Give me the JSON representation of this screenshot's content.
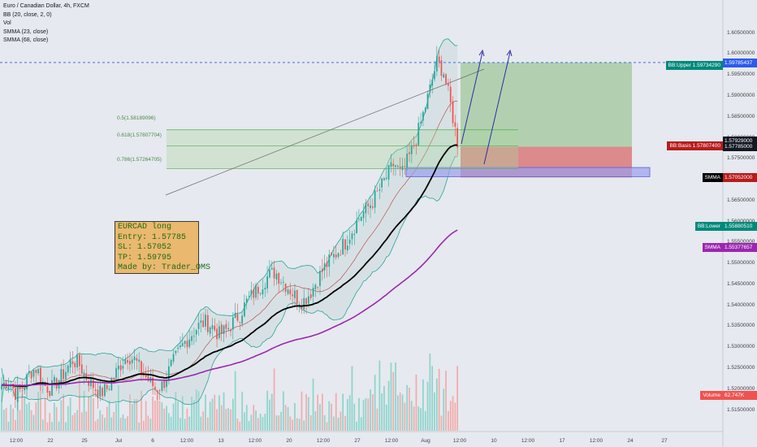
{
  "legend": {
    "title": "Euro / Canadian Dollar, 4h, FXCM",
    "bb": "BB (20, close, 2, 0)",
    "vol": "Vol",
    "smma1": "SMMA (23, close)",
    "smma2": "SMMA (68, close)"
  },
  "note": {
    "line1": "EURCAD long",
    "line2": "Entry: 1.57785",
    "line3": "SL: 1.57052",
    "line4": "TP: 1.59795",
    "line5": "Made by: Trader_OMS"
  },
  "fib_labels": [
    "0.5(1.58189096)",
    "0.618(1.57807704)",
    "0.786(1.57264705)"
  ],
  "price_labels": [
    {
      "text": "1.59795000",
      "color": "#2e7d32"
    },
    {
      "text": "1.59785437",
      "color": "#2c5bea"
    },
    {
      "text": "1.57929000",
      "color": "#131722"
    },
    {
      "text": "1.57785000",
      "color": "#131722"
    },
    {
      "text": "1.57058801",
      "color": "#000000"
    },
    {
      "text": "1.57052000",
      "color": "#b71c1c"
    },
    {
      "text": "1.55880510",
      "color": "#00897b"
    },
    {
      "text": "1.55377657",
      "color": "#9c27b0"
    },
    {
      "text": "62.747K",
      "color": "#ef5350"
    }
  ],
  "tag_labels": [
    {
      "text": "BB:Upper",
      "value": "1.59734290",
      "color": "#00897b"
    },
    {
      "text": "BB:Basis",
      "value": "1.57807400",
      "color": "#b71c1c"
    },
    {
      "text": "SMMA",
      "value": "",
      "color": "#000000"
    },
    {
      "text": "BB:Lower",
      "value": "",
      "color": "#00897b"
    },
    {
      "text": "SMMA",
      "value": "",
      "color": "#9c27b0"
    },
    {
      "text": "Volume",
      "value": "",
      "color": "#ef5350"
    }
  ],
  "y_ticks": [
    "1.60500000",
    "1.60000000",
    "1.59500000",
    "1.59000000",
    "1.58500000",
    "1.58000000",
    "1.57500000",
    "1.56500000",
    "1.56000000",
    "1.55500000",
    "1.55000000",
    "1.54500000",
    "1.54000000",
    "1.53500000",
    "1.53000000",
    "1.52500000",
    "1.52000000",
    "1.51500000"
  ],
  "x_ticks": [
    "12:00",
    "22",
    "25",
    "Jul",
    "6",
    "12:00",
    "13",
    "12:00",
    "20",
    "12:00",
    "27",
    "12:00",
    "Aug",
    "12:00",
    "10",
    "12:00",
    "17",
    "12:00",
    "24",
    "27"
  ],
  "chart_data": {
    "type": "candlestick",
    "symbol": "EURCAD",
    "timeframe": "4h",
    "ylim": [
      1.512,
      1.609
    ],
    "trade": {
      "entry": 1.57785,
      "stop_loss": 1.57052,
      "take_profit": 1.59795
    },
    "fib_levels": [
      {
        "ratio": 0.5,
        "price": 1.58189096
      },
      {
        "ratio": 0.618,
        "price": 1.57807704
      },
      {
        "ratio": 0.786,
        "price": 1.57264705
      }
    ],
    "last_values": {
      "bb_upper": 1.5973429,
      "bb_basis": 1.578074,
      "bb_lower": 1.5588051,
      "smma23": 1.57058801,
      "smma68": 1.55377657,
      "volume": "62.747K"
    },
    "close_path": [
      1.521,
      1.522,
      1.519,
      1.52,
      1.524,
      1.525,
      1.521,
      1.52,
      1.522,
      1.524,
      1.527,
      1.526,
      1.523,
      1.521,
      1.519,
      1.52,
      1.523,
      1.526,
      1.528,
      1.527,
      1.524,
      1.522,
      1.52,
      1.521,
      1.525,
      1.528,
      1.531,
      1.533,
      1.535,
      1.536,
      1.535,
      1.533,
      1.534,
      1.536,
      1.538,
      1.541,
      1.543,
      1.545,
      1.547,
      1.548,
      1.546,
      1.544,
      1.542,
      1.541,
      1.543,
      1.546,
      1.549,
      1.551,
      1.553,
      1.555,
      1.558,
      1.561,
      1.563,
      1.565,
      1.568,
      1.571,
      1.574,
      1.571,
      1.575,
      1.579,
      1.585,
      1.591,
      1.598,
      1.596,
      1.588,
      1.579
    ]
  }
}
